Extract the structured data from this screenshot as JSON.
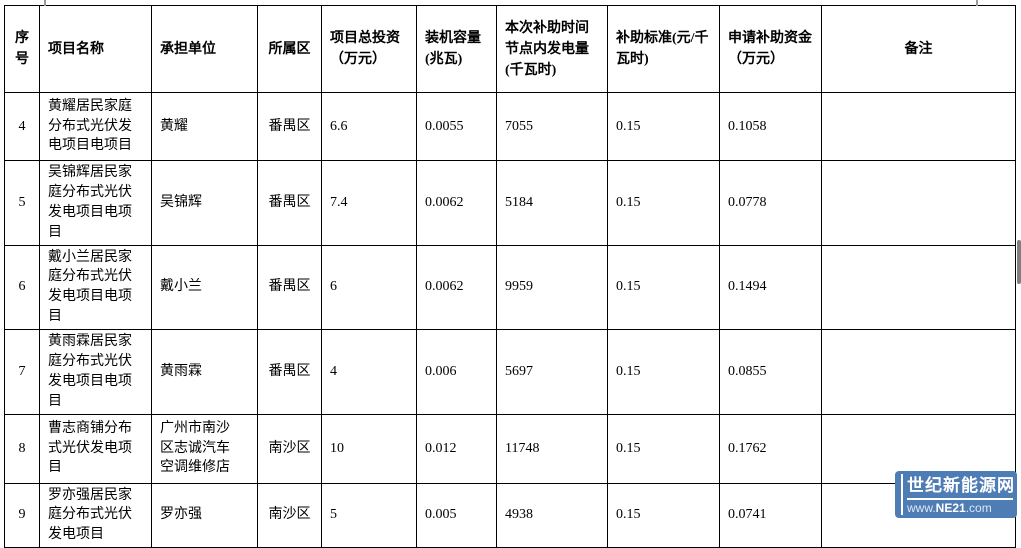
{
  "table": {
    "columns": [
      {
        "label": "序号"
      },
      {
        "label": "项目名称"
      },
      {
        "label": "承担单位"
      },
      {
        "label": "所属区"
      },
      {
        "label": "项目总投资（万元）"
      },
      {
        "label": "装机容量(兆瓦)"
      },
      {
        "label": "本次补助时间节点内发电量(千瓦时)"
      },
      {
        "label": "补助标准(元/千瓦时)"
      },
      {
        "label": "申请补助资金（万元）"
      },
      {
        "label": "备注"
      }
    ],
    "rows": [
      [
        "4",
        "黄耀居民家庭分布式光伏发电项目电项目",
        "黄耀",
        "番禺区",
        "6.6",
        "0.0055",
        "7055",
        "0.15",
        "0.1058",
        ""
      ],
      [
        "5",
        "吴锦辉居民家庭分布式光伏发电项目电项目",
        "吴锦辉",
        "番禺区",
        "7.4",
        "0.0062",
        "5184",
        "0.15",
        "0.0778",
        ""
      ],
      [
        "6",
        "戴小兰居民家庭分布式光伏发电项目电项目",
        "戴小兰",
        "番禺区",
        "6",
        "0.0062",
        "9959",
        "0.15",
        "0.1494",
        ""
      ],
      [
        "7",
        "黄雨霖居民家庭分布式光伏发电项目电项目",
        "黄雨霖",
        "番禺区",
        "4",
        "0.006",
        "5697",
        "0.15",
        "0.0855",
        ""
      ],
      [
        "8",
        "曹志商铺分布式光伏发电项目",
        "广州市南沙区志诚汽车空调维修店",
        "南沙区",
        "10",
        "0.012",
        "11748",
        "0.15",
        "0.1762",
        ""
      ],
      [
        "9",
        "罗亦强居民家庭分布式光伏发电项目",
        "罗亦强",
        "南沙区",
        "5",
        "0.005",
        "4938",
        "0.15",
        "0.0741",
        ""
      ]
    ]
  },
  "watermark": {
    "site_name": "世纪新能源网",
    "url_prefix": "www.",
    "url_name": "NE21",
    "url_suffix": ".com",
    "background_color": "#4e7cb5",
    "text_color": "#ffffff"
  }
}
